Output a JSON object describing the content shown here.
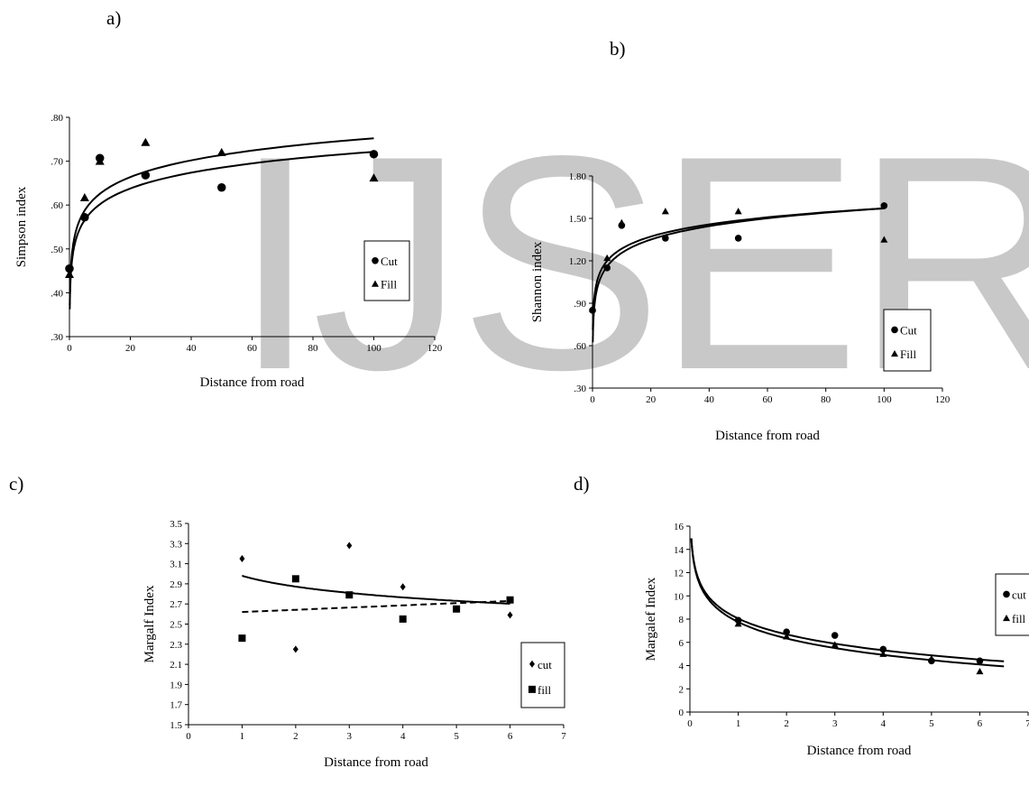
{
  "watermark": "IJSER",
  "chart_data": [
    {
      "id": "a",
      "panel_label": "a)",
      "type": "scatter",
      "xlabel": "Distance from road",
      "ylabel": "Simpson index",
      "xlim": [
        0,
        120
      ],
      "ylim": [
        0.3,
        0.8
      ],
      "xticks": [
        0,
        20,
        40,
        60,
        80,
        100,
        120
      ],
      "xtick_labels": [
        "0",
        "20",
        "40",
        "60",
        "80",
        "100",
        "120"
      ],
      "yticks": [
        0.3,
        0.4,
        0.5,
        0.6,
        0.7,
        0.8
      ],
      "ytick_labels": [
        ".30",
        ".40",
        ".50",
        ".60",
        ".70",
        ".80"
      ],
      "grid": false,
      "legend_position": "right",
      "series": [
        {
          "name": "Cut",
          "marker": "circle",
          "x": [
            0,
            5,
            10,
            25,
            50,
            100
          ],
          "y": [
            0.455,
            0.572,
            0.707,
            0.668,
            0.64,
            0.716
          ],
          "trend": {
            "type": "log",
            "a": 0.482,
            "b": 0.052,
            "x_range": [
              0.1,
              100
            ]
          }
        },
        {
          "name": "Fill",
          "marker": "triangle",
          "x": [
            0,
            5,
            10,
            25,
            50,
            100
          ],
          "y": [
            0.442,
            0.617,
            0.7,
            0.743,
            0.72,
            0.662
          ],
          "trend": {
            "type": "log",
            "a": 0.499,
            "b": 0.055,
            "x_range": [
              0.1,
              100
            ]
          }
        }
      ]
    },
    {
      "id": "b",
      "panel_label": "b)",
      "type": "scatter",
      "xlabel": "Distance from road",
      "ylabel": "Shannon index",
      "xlim": [
        0,
        120
      ],
      "ylim": [
        0.3,
        1.8
      ],
      "xticks": [
        0,
        20,
        40,
        60,
        80,
        100,
        120
      ],
      "xtick_labels": [
        "0",
        "20",
        "40",
        "60",
        "80",
        "100",
        "120"
      ],
      "yticks": [
        0.3,
        0.6,
        0.9,
        1.2,
        1.5,
        1.8
      ],
      "ytick_labels": [
        ".30",
        ".60",
        ".90",
        "1.20",
        "1.50",
        "1.80"
      ],
      "grid": false,
      "legend_position": "bottom-right",
      "series": [
        {
          "name": "Cut",
          "marker": "circle",
          "x": [
            0,
            5,
            10,
            25,
            50,
            100
          ],
          "y": [
            0.85,
            1.15,
            1.45,
            1.36,
            1.36,
            1.59
          ],
          "trend": {
            "type": "log",
            "a": 0.94,
            "b": 0.137,
            "x_range": [
              0.1,
              100
            ]
          }
        },
        {
          "name": "Fill",
          "marker": "triangle",
          "x": [
            0,
            5,
            10,
            25,
            50,
            100
          ],
          "y": [
            0.86,
            1.22,
            1.47,
            1.55,
            1.55,
            1.35
          ],
          "trend": {
            "type": "log",
            "a": 1.0,
            "b": 0.124,
            "x_range": [
              0.1,
              100
            ]
          }
        }
      ]
    },
    {
      "id": "c",
      "panel_label": "c)",
      "type": "scatter",
      "xlabel": "Distance from road",
      "ylabel": "Margalf Index",
      "xlim": [
        0,
        7
      ],
      "ylim": [
        1.5,
        3.5
      ],
      "xticks": [
        0,
        1,
        2,
        3,
        4,
        5,
        6,
        7
      ],
      "xtick_labels": [
        "0",
        "1",
        "2",
        "3",
        "4",
        "5",
        "6",
        "7"
      ],
      "yticks": [
        1.5,
        1.7,
        1.9,
        2.1,
        2.3,
        2.5,
        2.7,
        2.9,
        3.1,
        3.3,
        3.5
      ],
      "ytick_labels": [
        "1.5",
        "1.7",
        "1.9",
        "2.1",
        "2.3",
        "2.5",
        "2.7",
        "2.9",
        "3.1",
        "3.3",
        "3.5"
      ],
      "grid": false,
      "legend_position": "bottom-right",
      "series": [
        {
          "name": "cut",
          "marker": "diamond",
          "x": [
            1,
            2,
            3,
            4,
            5,
            6
          ],
          "y": [
            3.15,
            2.25,
            3.28,
            2.87,
            2.65,
            2.59
          ],
          "trend": {
            "type": "log",
            "a": 2.98,
            "b": -0.155,
            "x_range": [
              1,
              6
            ],
            "dash": false
          }
        },
        {
          "name": "fill",
          "marker": "square",
          "x": [
            1,
            2,
            3,
            4,
            5,
            6
          ],
          "y": [
            2.36,
            2.95,
            2.79,
            2.55,
            2.65,
            2.74
          ],
          "trend": {
            "type": "linear",
            "a": 2.598,
            "b": 0.022,
            "x_range": [
              1,
              6
            ],
            "dash": true
          }
        }
      ]
    },
    {
      "id": "d",
      "panel_label": "d)",
      "type": "scatter",
      "xlabel": "Distance from road",
      "ylabel": "Margalef Index",
      "xlim": [
        0,
        7
      ],
      "ylim": [
        0,
        16
      ],
      "xticks": [
        0,
        1,
        2,
        3,
        4,
        5,
        6,
        7
      ],
      "xtick_labels": [
        "0",
        "1",
        "2",
        "3",
        "4",
        "5",
        "6",
        "7"
      ],
      "yticks": [
        0,
        2,
        4,
        6,
        8,
        10,
        12,
        14,
        16
      ],
      "ytick_labels": [
        "0",
        "2",
        "4",
        "6",
        "8",
        "10",
        "12",
        "14",
        "16"
      ],
      "grid": false,
      "legend_position": "right",
      "series": [
        {
          "name": "cut",
          "marker": "circle",
          "x": [
            1,
            2,
            3,
            4,
            5,
            6
          ],
          "y": [
            7.9,
            6.9,
            6.6,
            5.4,
            4.4,
            4.4
          ],
          "trend": {
            "type": "log",
            "a": 8.05,
            "b": -1.97,
            "x_range": [
              0.03,
              6.5
            ]
          }
        },
        {
          "name": "fill",
          "marker": "triangle",
          "x": [
            1,
            2,
            3,
            4,
            5,
            6
          ],
          "y": [
            7.6,
            6.5,
            5.8,
            5.0,
            4.6,
            3.5
          ],
          "trend": {
            "type": "log",
            "a": 7.75,
            "b": -2.04,
            "x_range": [
              0.03,
              6.5
            ]
          }
        }
      ]
    }
  ]
}
